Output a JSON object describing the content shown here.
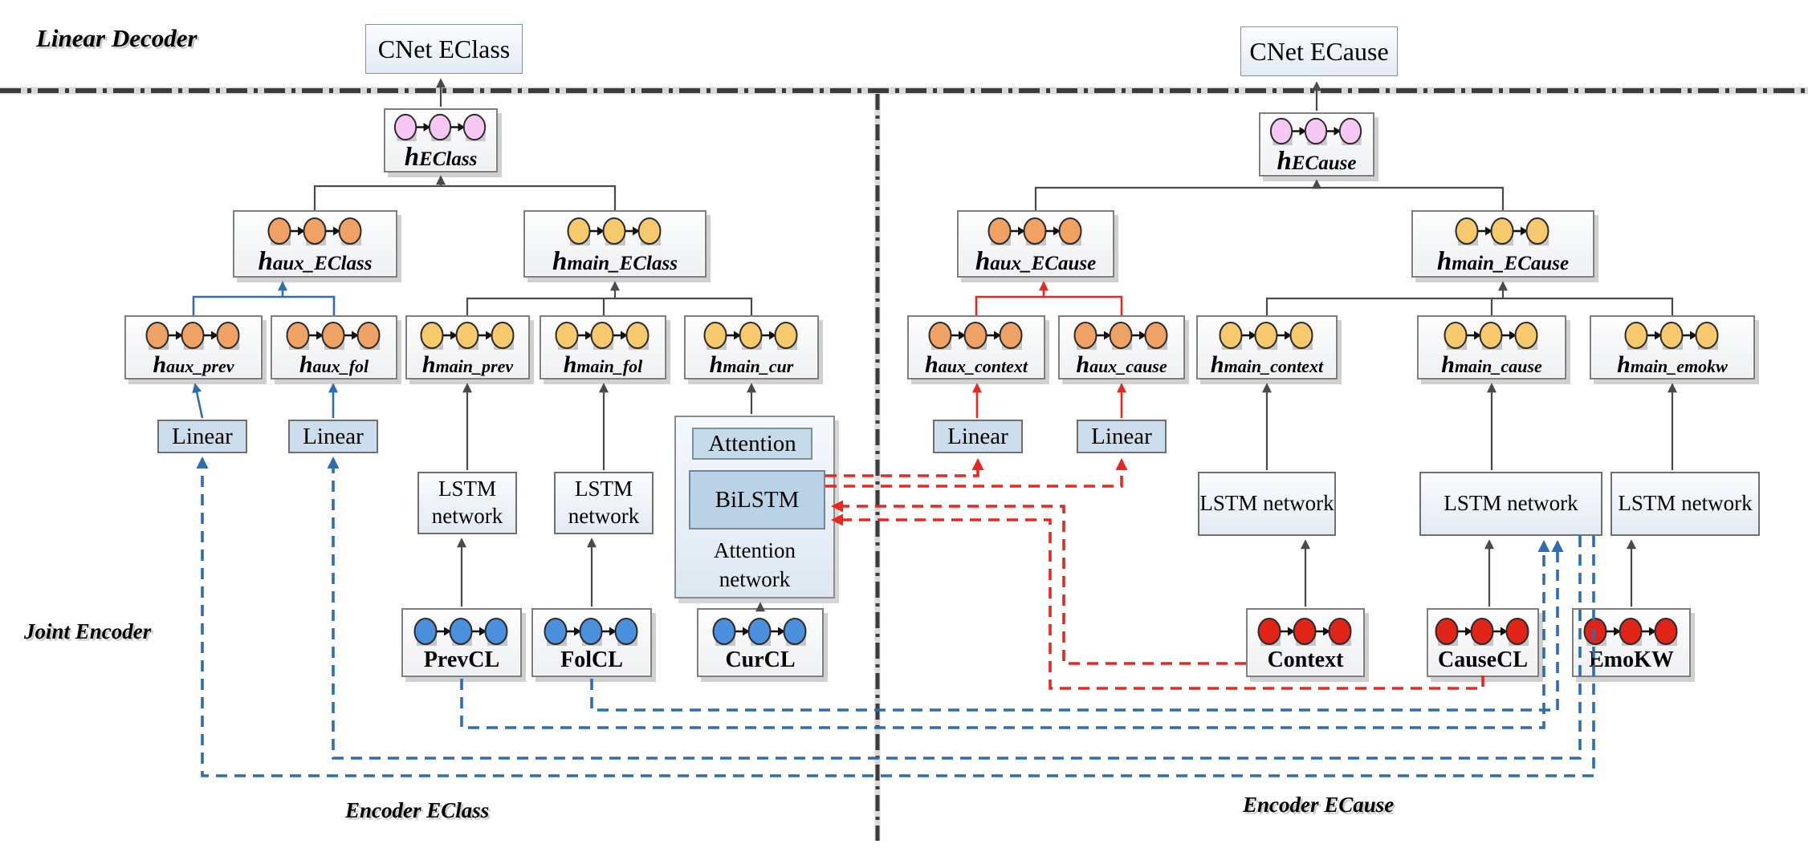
{
  "section_labels": {
    "linear_decoder": "Linear Decoder",
    "joint_encoder": "Joint Encoder",
    "encoder_eclass": "Encoder EClass",
    "encoder_ecause": "Encoder ECause"
  },
  "decoder_boxes": {
    "cnet_eclass": "CNet EClass",
    "cnet_ecause": "CNet ECause"
  },
  "process_boxes": {
    "linear": "Linear",
    "lstm_two_line": "LSTM network",
    "lstm_one_line": "LSTM network",
    "attention": "Attention",
    "bilstm": "BiLSTM",
    "attention_network": "Attention network"
  },
  "rnn_boxes": [
    {
      "id": "h_eclass",
      "label_main": "h",
      "label_sub": "EClass",
      "circles": "pink"
    },
    {
      "id": "h_ecause",
      "label_main": "h",
      "label_sub": "ECause",
      "circles": "pink"
    },
    {
      "id": "haux_eclass",
      "label_main": "h",
      "label_sub": "aux_EClass",
      "circles": "orange"
    },
    {
      "id": "hmain_eclass",
      "label_main": "h",
      "label_sub": "main_EClass",
      "circles": "yellow"
    },
    {
      "id": "haux_ecause",
      "label_main": "h",
      "label_sub": "aux_ECause",
      "circles": "orange"
    },
    {
      "id": "hmain_ecause",
      "label_main": "h",
      "label_sub": "main_ECause",
      "circles": "yellow"
    },
    {
      "id": "haux_prev",
      "label_main": "h",
      "label_sub": "aux_prev",
      "circles": "orange"
    },
    {
      "id": "haux_fol",
      "label_main": "h",
      "label_sub": "aux_fol",
      "circles": "orange"
    },
    {
      "id": "hmain_prev",
      "label_main": "h",
      "label_sub": "main_prev",
      "circles": "yellow"
    },
    {
      "id": "hmain_fol",
      "label_main": "h",
      "label_sub": "main_fol",
      "circles": "yellow"
    },
    {
      "id": "hmain_cur",
      "label_main": "h",
      "label_sub": "main_cur",
      "circles": "yellow"
    },
    {
      "id": "haux_context",
      "label_main": "h",
      "label_sub": "aux_context",
      "circles": "orange"
    },
    {
      "id": "haux_cause",
      "label_main": "h",
      "label_sub": "aux_cause",
      "circles": "orange"
    },
    {
      "id": "hmain_context",
      "label_main": "h",
      "label_sub": "main_context",
      "circles": "yellow"
    },
    {
      "id": "hmain_cause",
      "label_main": "h",
      "label_sub": "main_cause",
      "circles": "yellow"
    },
    {
      "id": "hmain_emokw",
      "label_main": "h",
      "label_sub": "main_emokw",
      "circles": "yellow"
    },
    {
      "id": "prevcl",
      "label_main": "PrevCL",
      "label_sub": "",
      "circles": "blue"
    },
    {
      "id": "folcl",
      "label_main": "FolCL",
      "label_sub": "",
      "circles": "blue"
    },
    {
      "id": "curcl",
      "label_main": "CurCL",
      "label_sub": "",
      "circles": "blue"
    },
    {
      "id": "context",
      "label_main": "Context",
      "label_sub": "",
      "circles": "red"
    },
    {
      "id": "causecl",
      "label_main": "CauseCL",
      "label_sub": "",
      "circles": "red"
    },
    {
      "id": "emokw",
      "label_main": "EmoKW",
      "label_sub": "",
      "circles": "red"
    }
  ],
  "colors": {
    "circle_pink": "#f7c7f3",
    "circle_orange": "#f0a264",
    "circle_yellow": "#f6c96d",
    "circle_blue": "#4b90dd",
    "circle_red": "#e02518",
    "blue_line": "#2e6db4",
    "red_line": "#e8281e",
    "gray_line": "#4a4a4a",
    "divider": "#3b3b3b"
  }
}
